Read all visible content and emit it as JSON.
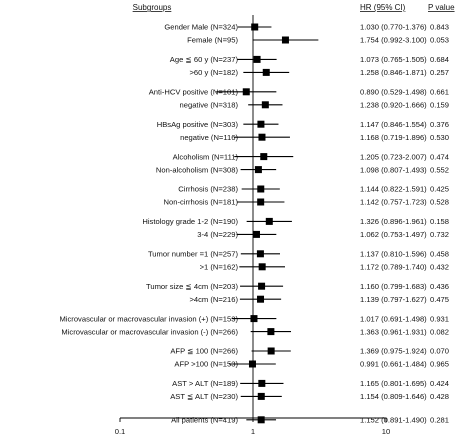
{
  "chart_data": {
    "type": "forest",
    "x_scale": "log",
    "xlim": [
      0.1,
      10
    ],
    "reference_line": 1,
    "grid": false,
    "legend": "none",
    "x_ticks": [
      {
        "value": 0.1,
        "label": "0.1"
      },
      {
        "value": 1,
        "label": "1"
      },
      {
        "value": 10,
        "label": "10"
      }
    ],
    "headers": {
      "subgroups": "Subgroups",
      "hr": "HR (95% CI)",
      "p": "P value"
    },
    "rows": [
      {
        "label": "Gender Male (N=324)",
        "hr": 1.03,
        "lo": 0.77,
        "hi": 1.376,
        "hr_text": "1.030 (0.770-1.376)",
        "p": "0.843"
      },
      {
        "label": "Female (N=95)",
        "hr": 1.754,
        "lo": 0.992,
        "hi": 3.1,
        "hr_text": "1.754 (0.992-3.100)",
        "p": "0.053"
      },
      {
        "label": "Age ≦ 60 y (N=237)",
        "hr": 1.073,
        "lo": 0.765,
        "hi": 1.505,
        "hr_text": "1.073 (0.765-1.505)",
        "p": "0.684"
      },
      {
        "label": ">60 y (N=182)",
        "hr": 1.258,
        "lo": 0.846,
        "hi": 1.871,
        "hr_text": "1.258 (0.846-1.871)",
        "p": "0.257"
      },
      {
        "label": "Anti-HCV positive (N=101)",
        "hr": 0.89,
        "lo": 0.529,
        "hi": 1.498,
        "hr_text": "0.890 (0.529-1.498)",
        "p": "0.661"
      },
      {
        "label": "negative (N=318)",
        "hr": 1.238,
        "lo": 0.92,
        "hi": 1.666,
        "hr_text": "1.238 (0.920-1.666)",
        "p": "0.159"
      },
      {
        "label": "HBsAg positive (N=303)",
        "hr": 1.147,
        "lo": 0.846,
        "hi": 1.554,
        "hr_text": "1.147 (0.846-1.554)",
        "p": "0.376"
      },
      {
        "label": "negative (N=116)",
        "hr": 1.168,
        "lo": 0.719,
        "hi": 1.896,
        "hr_text": "1.168 (0.719-1.896)",
        "p": "0.530"
      },
      {
        "label": "Alcoholism (N=111)",
        "hr": 1.205,
        "lo": 0.723,
        "hi": 2.007,
        "hr_text": "1.205 (0.723-2.007)",
        "p": "0.474"
      },
      {
        "label": "Non-alcoholism (N=308)",
        "hr": 1.098,
        "lo": 0.807,
        "hi": 1.493,
        "hr_text": "1.098 (0.807-1.493)",
        "p": "0.552"
      },
      {
        "label": "Cirrhosis (N=238)",
        "hr": 1.144,
        "lo": 0.822,
        "hi": 1.591,
        "hr_text": "1.144 (0.822-1.591)",
        "p": "0.425"
      },
      {
        "label": "Non-cirrhosis (N=181)",
        "hr": 1.142,
        "lo": 0.757,
        "hi": 1.723,
        "hr_text": "1.142 (0.757-1.723)",
        "p": "0.528"
      },
      {
        "label": "Histology grade 1-2 (N=190)",
        "hr": 1.326,
        "lo": 0.896,
        "hi": 1.961,
        "hr_text": "1.326 (0.896-1.961)",
        "p": "0.158"
      },
      {
        "label": "3-4 (N=229)",
        "hr": 1.062,
        "lo": 0.753,
        "hi": 1.497,
        "hr_text": "1.062 (0.753-1.497)",
        "p": "0.732"
      },
      {
        "label": "Tumor number =1 (N=257)",
        "hr": 1.137,
        "lo": 0.81,
        "hi": 1.596,
        "hr_text": "1.137 (0.810-1.596)",
        "p": "0.458"
      },
      {
        "label": ">1 (N=162)",
        "hr": 1.172,
        "lo": 0.789,
        "hi": 1.74,
        "hr_text": "1.172 (0.789-1.740)",
        "p": "0.432"
      },
      {
        "label": "Tumor size ≦ 4cm (N=203)",
        "hr": 1.16,
        "lo": 0.799,
        "hi": 1.683,
        "hr_text": "1.160 (0.799-1.683)",
        "p": "0.436"
      },
      {
        "label": ">4cm (N=216)",
        "hr": 1.139,
        "lo": 0.797,
        "hi": 1.627,
        "hr_text": "1.139 (0.797-1.627)",
        "p": "0.475"
      },
      {
        "label": "Microvascular or macrovascular invasion (+) (N=153)",
        "hr": 1.017,
        "lo": 0.691,
        "hi": 1.498,
        "hr_text": "1.017 (0.691-1.498)",
        "p": "0.931"
      },
      {
        "label": "Microvascular or macrovascular invasion (-) (N=266)",
        "hr": 1.363,
        "lo": 0.961,
        "hi": 1.931,
        "hr_text": "1.363 (0.961-1.931)",
        "p": "0.082"
      },
      {
        "label": "AFP ≦ 100 (N=266)",
        "hr": 1.369,
        "lo": 0.975,
        "hi": 1.924,
        "hr_text": "1.369 (0.975-1.924)",
        "p": "0.070"
      },
      {
        "label": "AFP >100 (N=153)",
        "hr": 0.991,
        "lo": 0.661,
        "hi": 1.484,
        "hr_text": "0.991 (0.661-1.484)",
        "p": "0.965"
      },
      {
        "label": "AST > ALT (N=189)",
        "hr": 1.165,
        "lo": 0.801,
        "hi": 1.695,
        "hr_text": "1.165 (0.801-1.695)",
        "p": "0.424"
      },
      {
        "label": "AST ≦ ALT (N=230)",
        "hr": 1.154,
        "lo": 0.809,
        "hi": 1.646,
        "hr_text": "1.154 (0.809-1.646)",
        "p": "0.428"
      },
      {
        "label": "All patients (N=419)",
        "hr": 1.152,
        "lo": 0.891,
        "hi": 1.49,
        "hr_text": "1.152 (0.891-1.490)",
        "p": "0.281"
      }
    ]
  }
}
